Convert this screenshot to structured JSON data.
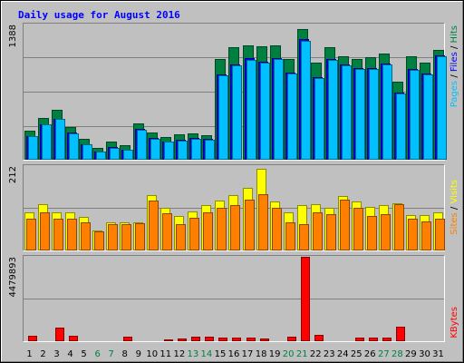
{
  "chart_data": [
    {
      "type": "bar",
      "title": "Daily usage for August 2016",
      "categories": [
        "1",
        "2",
        "3",
        "4",
        "5",
        "6",
        "7",
        "8",
        "9",
        "10",
        "11",
        "12",
        "13",
        "14",
        "15",
        "16",
        "17",
        "18",
        "19",
        "20",
        "21",
        "22",
        "23",
        "24",
        "25",
        "26",
        "27",
        "28",
        "29",
        "30",
        "31"
      ],
      "weekend_days": [
        "6",
        "7",
        "13",
        "14",
        "20",
        "21",
        "27",
        "28"
      ],
      "y_max_label": "1388",
      "ylim": [
        0,
        1388
      ],
      "series": [
        {
          "name": "Hits",
          "color": "#008040",
          "values": [
            299,
            433,
            513,
            336,
            213,
            123,
            187,
            149,
            375,
            284,
            237,
            257,
            268,
            255,
            1031,
            1151,
            1178,
            1164,
            1176,
            1033,
            1344,
            995,
            1153,
            1066,
            1030,
            1051,
            1094,
            805,
            1060,
            993,
            1128
          ]
        },
        {
          "name": "Files",
          "color": "#0000ff",
          "values": [
            245,
            366,
            423,
            277,
            162,
            86,
            130,
            106,
            313,
            220,
            188,
            203,
            220,
            212,
            880,
            974,
            1040,
            1008,
            1047,
            890,
            1236,
            852,
            1033,
            975,
            941,
            938,
            985,
            691,
            934,
            885,
            1070
          ]
        },
        {
          "name": "Pages",
          "color": "#00c0ff",
          "values": [
            240,
            361,
            416,
            271,
            158,
            84,
            125,
            101,
            309,
            215,
            184,
            198,
            215,
            207,
            869,
            965,
            1029,
            999,
            1037,
            881,
            1223,
            843,
            1024,
            966,
            932,
            929,
            976,
            682,
            925,
            876,
            1061
          ]
        }
      ]
    },
    {
      "type": "bar",
      "categories": [
        "1",
        "2",
        "3",
        "4",
        "5",
        "6",
        "7",
        "8",
        "9",
        "10",
        "11",
        "12",
        "13",
        "14",
        "15",
        "16",
        "17",
        "18",
        "19",
        "20",
        "21",
        "22",
        "23",
        "24",
        "25",
        "26",
        "27",
        "28",
        "29",
        "30",
        "31"
      ],
      "y_max_label": "212",
      "ylim": [
        0,
        212
      ],
      "series": [
        {
          "name": "Visits",
          "color": "#ffff00",
          "values": [
            95,
            117,
            95,
            95,
            85,
            51,
            71,
            71,
            71,
            140,
            108,
            87,
            98,
            115,
            125,
            140,
            157,
            206,
            124,
            96,
            115,
            117,
            108,
            137,
            124,
            110,
            115,
            119,
            90,
            88,
            96
          ]
        },
        {
          "name": "Sites",
          "color": "#ff8000",
          "values": [
            80,
            95,
            80,
            80,
            71,
            48,
            67,
            67,
            69,
            126,
            93,
            66,
            81,
            95,
            106,
            113,
            128,
            141,
            106,
            70,
            66,
            95,
            91,
            127,
            108,
            86,
            92,
            116,
            80,
            74,
            79
          ]
        }
      ]
    },
    {
      "type": "bar",
      "categories": [
        "1",
        "2",
        "3",
        "4",
        "5",
        "6",
        "7",
        "8",
        "9",
        "10",
        "11",
        "12",
        "13",
        "14",
        "15",
        "16",
        "17",
        "18",
        "19",
        "20",
        "21",
        "22",
        "23",
        "24",
        "25",
        "26",
        "27",
        "28",
        "29",
        "30",
        "31"
      ],
      "y_max_label": "4479893",
      "ylim": [
        0,
        4479893
      ],
      "series": [
        {
          "name": "KBytes",
          "color": "#ff0000",
          "values": [
            305000,
            60000,
            700000,
            305000,
            50000,
            40000,
            40000,
            250000,
            40000,
            70000,
            110000,
            140000,
            230000,
            230000,
            195000,
            205000,
            205000,
            160000,
            60000,
            250000,
            4479893,
            360000,
            40000,
            40000,
            190000,
            190000,
            190000,
            760000,
            40000,
            40000,
            40000
          ]
        }
      ]
    }
  ]
}
